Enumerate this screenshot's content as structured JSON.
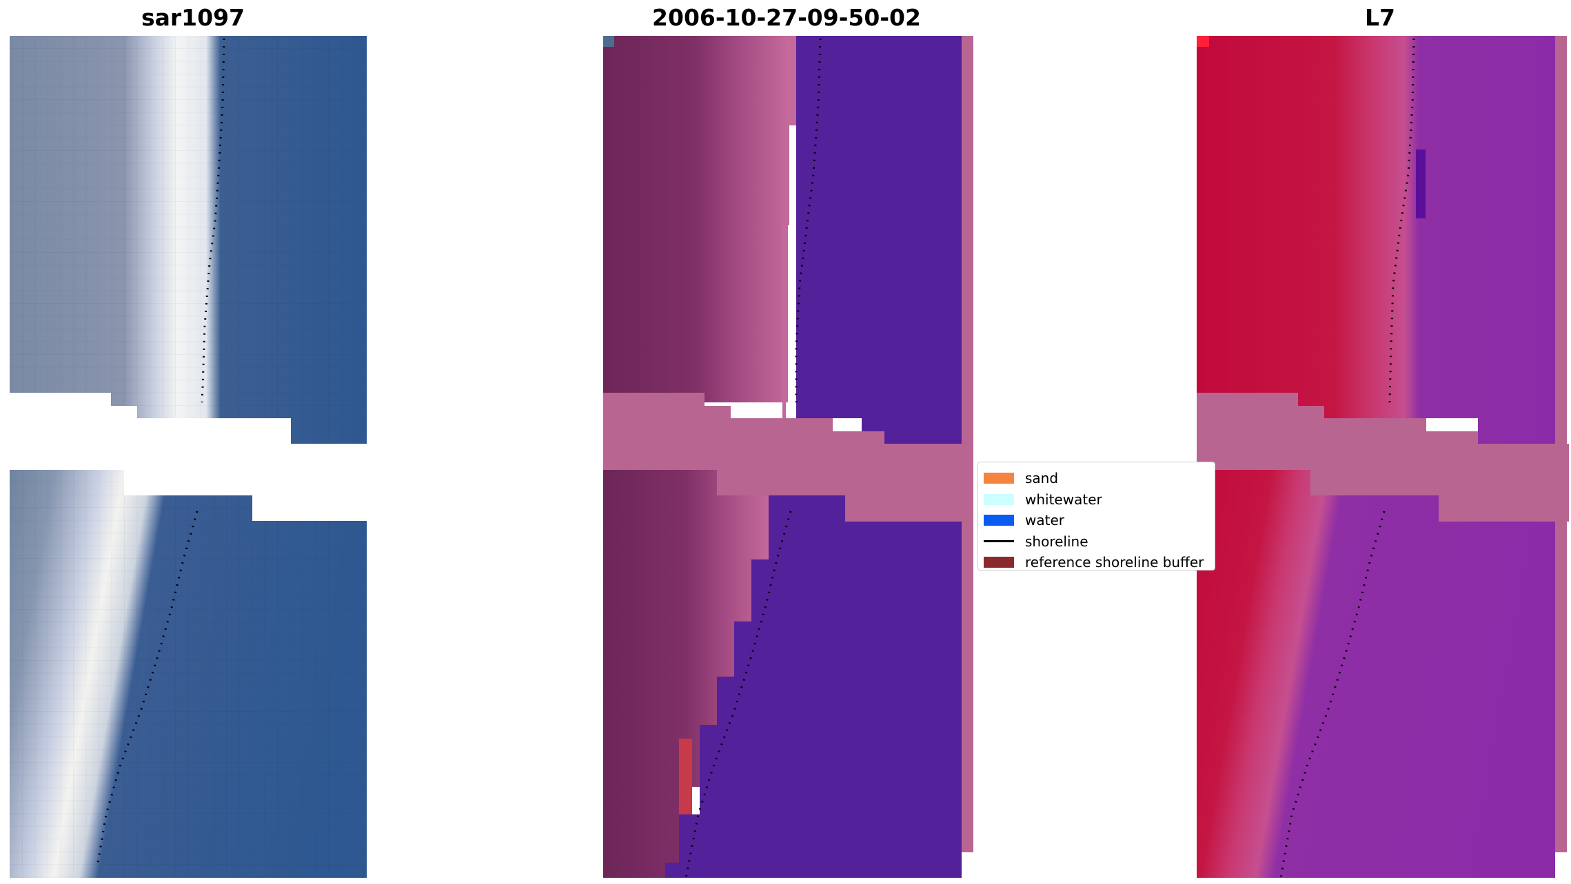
{
  "panels": [
    {
      "title": "sar1097",
      "kind": "rgb"
    },
    {
      "title": "2006-10-27-09-50-02",
      "kind": "classified"
    },
    {
      "title": "L7",
      "kind": "index"
    }
  ],
  "legend": {
    "items": [
      {
        "label": "sand",
        "color": "#f4843f",
        "type": "patch"
      },
      {
        "label": "whitewater",
        "color": "#ccffff",
        "type": "patch"
      },
      {
        "label": "water",
        "color": "#0a5bf0",
        "type": "patch"
      },
      {
        "label": "shoreline",
        "color": "#000000",
        "type": "line"
      },
      {
        "label": "reference shoreline buffer",
        "color": "#8b2a2e",
        "type": "patch"
      }
    ]
  },
  "colors": {
    "rgb_land": "#7f8ea6",
    "rgb_water": "#2f5992",
    "rgb_surf": "#e8eef3",
    "class_land": "#7d2e62",
    "class_sand": "#b9608e",
    "class_water": "#53229a",
    "class_nodata": "#b86592",
    "index_land": "#c4123f",
    "index_water": "#8c2ba8",
    "index_nodata": "#b86592"
  }
}
